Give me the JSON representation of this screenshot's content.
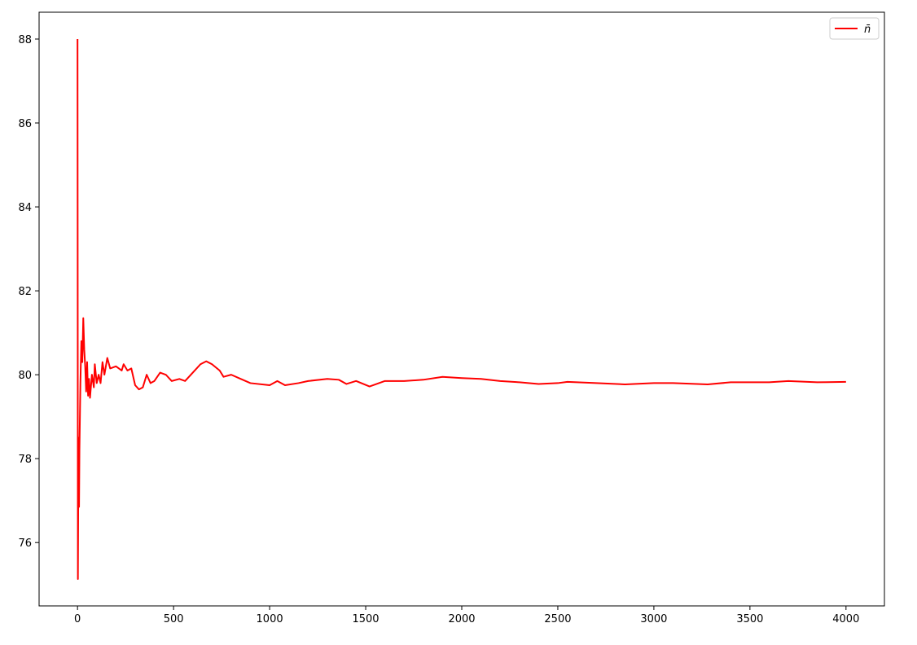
{
  "chart_data": {
    "type": "line",
    "x": [
      0,
      2,
      5,
      8,
      10,
      15,
      20,
      25,
      30,
      35,
      40,
      45,
      50,
      55,
      60,
      65,
      75,
      85,
      90,
      100,
      110,
      120,
      130,
      140,
      155,
      170,
      200,
      230,
      240,
      260,
      280,
      300,
      320,
      340,
      360,
      380,
      400,
      430,
      460,
      490,
      530,
      560,
      600,
      640,
      670,
      700,
      740,
      760,
      800,
      850,
      900,
      1000,
      1040,
      1080,
      1150,
      1200,
      1300,
      1360,
      1400,
      1450,
      1520,
      1600,
      1700,
      1800,
      1900,
      2000,
      2100,
      2200,
      2300,
      2400,
      2500,
      2550,
      2700,
      2850,
      3000,
      3100,
      3280,
      3400,
      3600,
      3700,
      3850,
      4000
    ],
    "series": [
      {
        "name": "n̄",
        "color": "#ff0000",
        "values": [
          88,
          75.13,
          78.5,
          76.85,
          78.2,
          79.8,
          80.8,
          80.3,
          81.35,
          80.6,
          80.2,
          79.6,
          80.3,
          79.5,
          79.9,
          79.45,
          80.0,
          79.7,
          80.25,
          79.8,
          80.0,
          79.8,
          80.3,
          80.0,
          80.4,
          80.15,
          80.2,
          80.1,
          80.25,
          80.1,
          80.15,
          79.75,
          79.65,
          79.7,
          80.0,
          79.8,
          79.85,
          80.05,
          80.0,
          79.85,
          79.9,
          79.85,
          80.05,
          80.25,
          80.32,
          80.25,
          80.1,
          79.95,
          80.0,
          79.9,
          79.8,
          79.75,
          79.85,
          79.75,
          79.8,
          79.85,
          79.9,
          79.88,
          79.78,
          79.85,
          79.72,
          79.85,
          79.85,
          79.88,
          79.95,
          79.92,
          79.9,
          79.85,
          79.82,
          79.78,
          79.8,
          79.83,
          79.8,
          79.77,
          79.8,
          79.8,
          79.77,
          79.82,
          79.82,
          79.85,
          79.82,
          79.83
        ]
      }
    ],
    "xlim": [
      -200,
      4200
    ],
    "xticks": [
      0,
      500,
      1000,
      1500,
      2000,
      2500,
      3000,
      3500,
      4000
    ],
    "ylim": [
      74.49,
      88.64
    ],
    "yticks": [
      76,
      78,
      80,
      82,
      84,
      86,
      88
    ],
    "legend": "upper right"
  }
}
